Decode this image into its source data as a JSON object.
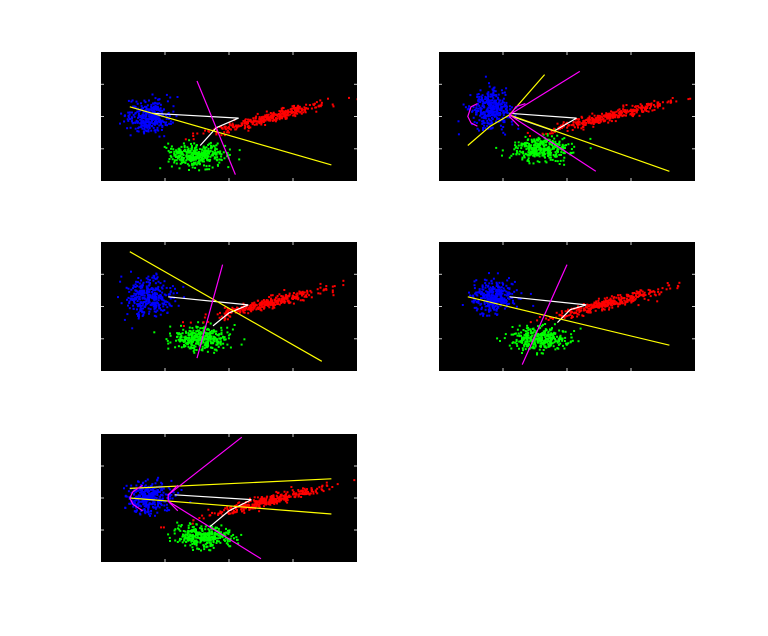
{
  "figure": {
    "background": "#ffffff",
    "axes_background": "#000000",
    "tick_color": "#cccccc"
  },
  "chart_data": [
    {
      "type": "scatter",
      "xlim": [
        0,
        8
      ],
      "ylim": [
        -1,
        3
      ],
      "grid": false,
      "clusters": [
        {
          "color": "#0000ff",
          "n": 340,
          "center": [
            1.5,
            1.0
          ],
          "sx": 0.33,
          "sy": 0.25,
          "rot": 0.0
        },
        {
          "color": "#00ff00",
          "n": 340,
          "center": [
            3.0,
            -0.2
          ],
          "sx": 0.45,
          "sy": 0.18,
          "rot": 0.0
        },
        {
          "color": "#ff0000",
          "n": 340,
          "center": [
            5.2,
            0.95
          ],
          "sx": 0.95,
          "sy": 0.08,
          "rot": 0.24
        }
      ],
      "curves": [
        {
          "color": "#ffffff",
          "points": [
            [
              3.1,
              0.1
            ],
            [
              3.6,
              0.65
            ],
            [
              4.3,
              0.95
            ]
          ]
        },
        {
          "color": "#ffffff",
          "points": [
            [
              1.6,
              1.1
            ],
            [
              4.3,
              0.95
            ]
          ]
        },
        {
          "color": "#ffff00",
          "points": [
            [
              0.9,
              1.3
            ],
            [
              7.2,
              -0.5
            ]
          ]
        },
        {
          "color": "#ff00ff",
          "points": [
            [
              3.0,
              2.1
            ],
            [
              4.2,
              -0.8
            ]
          ]
        }
      ]
    },
    {
      "type": "scatter",
      "xlim": [
        0,
        8
      ],
      "ylim": [
        -1,
        3
      ],
      "grid": false,
      "clusters": [
        {
          "color": "#0000ff",
          "n": 340,
          "center": [
            1.6,
            1.2
          ],
          "sx": 0.3,
          "sy": 0.28,
          "rot": 0.0
        },
        {
          "color": "#00ff00",
          "n": 340,
          "center": [
            3.2,
            0.0
          ],
          "sx": 0.45,
          "sy": 0.18,
          "rot": 0.0
        },
        {
          "color": "#ff0000",
          "n": 340,
          "center": [
            5.3,
            1.0
          ],
          "sx": 0.95,
          "sy": 0.08,
          "rot": 0.24
        }
      ],
      "curves": [
        {
          "color": "#ffffff",
          "points": [
            [
              2.3,
              1.0
            ],
            [
              3.6,
              0.55
            ],
            [
              4.3,
              0.95
            ]
          ]
        },
        {
          "color": "#ffffff",
          "points": [
            [
              2.2,
              1.1
            ],
            [
              4.3,
              0.95
            ]
          ]
        },
        {
          "color": "#ffff00",
          "points": [
            [
              2.2,
              1.05
            ],
            [
              7.2,
              -0.7
            ]
          ]
        },
        {
          "color": "#ffff00",
          "points": [
            [
              0.9,
              0.1
            ],
            [
              1.6,
              0.7
            ],
            [
              2.2,
              1.05
            ],
            [
              3.3,
              2.3
            ]
          ]
        },
        {
          "color": "#ff00ff",
          "points": [
            [
              2.2,
              1.05
            ],
            [
              4.4,
              2.4
            ]
          ]
        },
        {
          "color": "#ff00ff",
          "points": [
            [
              2.2,
              1.05
            ],
            [
              4.9,
              -0.7
            ]
          ]
        },
        {
          "color": "#ff00ff",
          "points": [
            [
              1.2,
              0.7
            ],
            [
              1.0,
              0.8
            ],
            [
              0.9,
              1.0
            ],
            [
              1.0,
              1.3
            ],
            [
              1.2,
              1.4
            ]
          ]
        },
        {
          "color": "#ff00ff",
          "points": [
            [
              2.5,
              0.7
            ],
            [
              2.2,
              1.0
            ],
            [
              2.4,
              1.3
            ],
            [
              2.7,
              1.4
            ]
          ]
        }
      ]
    },
    {
      "type": "scatter",
      "xlim": [
        0,
        8
      ],
      "ylim": [
        -1,
        3
      ],
      "grid": false,
      "clusters": [
        {
          "color": "#0000ff",
          "n": 340,
          "center": [
            1.5,
            1.3
          ],
          "sx": 0.35,
          "sy": 0.28,
          "rot": 0.0
        },
        {
          "color": "#00ff00",
          "n": 340,
          "center": [
            3.1,
            0.0
          ],
          "sx": 0.45,
          "sy": 0.18,
          "rot": 0.0
        },
        {
          "color": "#ff0000",
          "n": 340,
          "center": [
            5.2,
            1.1
          ],
          "sx": 0.95,
          "sy": 0.08,
          "rot": 0.24
        }
      ],
      "curves": [
        {
          "color": "#ffffff",
          "points": [
            [
              3.5,
              0.4
            ],
            [
              4.0,
              0.8
            ],
            [
              4.6,
              1.05
            ]
          ]
        },
        {
          "color": "#ffffff",
          "points": [
            [
              2.1,
              1.3
            ],
            [
              4.6,
              1.05
            ]
          ]
        },
        {
          "color": "#ffff00",
          "points": [
            [
              0.9,
              2.7
            ],
            [
              6.9,
              -0.7
            ]
          ]
        },
        {
          "color": "#ff00ff",
          "points": [
            [
              3.8,
              2.3
            ],
            [
              3.0,
              -0.6
            ]
          ]
        }
      ]
    },
    {
      "type": "scatter",
      "xlim": [
        0,
        8
      ],
      "ylim": [
        -1,
        3
      ],
      "grid": false,
      "clusters": [
        {
          "color": "#0000ff",
          "n": 340,
          "center": [
            1.7,
            1.3
          ],
          "sx": 0.35,
          "sy": 0.25,
          "rot": 0.0
        },
        {
          "color": "#00ff00",
          "n": 340,
          "center": [
            3.1,
            0.0
          ],
          "sx": 0.45,
          "sy": 0.18,
          "rot": 0.0
        },
        {
          "color": "#ff0000",
          "n": 340,
          "center": [
            5.3,
            1.1
          ],
          "sx": 0.95,
          "sy": 0.08,
          "rot": 0.24
        }
      ],
      "curves": [
        {
          "color": "#ffffff",
          "points": [
            [
              3.7,
              0.5
            ],
            [
              4.1,
              0.9
            ],
            [
              4.6,
              1.05
            ]
          ]
        },
        {
          "color": "#ffffff",
          "points": [
            [
              2.2,
              1.3
            ],
            [
              4.6,
              1.05
            ]
          ]
        },
        {
          "color": "#ffff00",
          "points": [
            [
              0.9,
              1.3
            ],
            [
              7.2,
              -0.2
            ]
          ]
        },
        {
          "color": "#ff00ff",
          "points": [
            [
              4.0,
              2.3
            ],
            [
              2.6,
              -0.8
            ]
          ]
        }
      ]
    },
    {
      "type": "scatter",
      "xlim": [
        0,
        8
      ],
      "ylim": [
        -1,
        3
      ],
      "grid": false,
      "clusters": [
        {
          "color": "#0000ff",
          "n": 340,
          "center": [
            1.5,
            1.0
          ],
          "sx": 0.33,
          "sy": 0.25,
          "rot": 0.0
        },
        {
          "color": "#00ff00",
          "n": 340,
          "center": [
            3.2,
            -0.2
          ],
          "sx": 0.45,
          "sy": 0.18,
          "rot": 0.0
        },
        {
          "color": "#ff0000",
          "n": 340,
          "center": [
            5.2,
            0.9
          ],
          "sx": 0.95,
          "sy": 0.08,
          "rot": 0.24
        }
      ],
      "curves": [
        {
          "color": "#ffffff",
          "points": [
            [
              3.4,
              0.1
            ],
            [
              4.0,
              0.6
            ],
            [
              4.7,
              0.95
            ]
          ]
        },
        {
          "color": "#ffffff",
          "points": [
            [
              2.3,
              1.1
            ],
            [
              4.7,
              0.95
            ]
          ]
        },
        {
          "color": "#ffff00",
          "points": [
            [
              0.9,
              1.3
            ],
            [
              7.2,
              1.6
            ]
          ]
        },
        {
          "color": "#ffff00",
          "points": [
            [
              0.9,
              1.0
            ],
            [
              7.2,
              0.5
            ]
          ]
        },
        {
          "color": "#ff00ff",
          "points": [
            [
              2.1,
              1.1
            ],
            [
              4.4,
              2.9
            ]
          ]
        },
        {
          "color": "#ff00ff",
          "points": [
            [
              2.1,
              0.9
            ],
            [
              5.0,
              -0.9
            ]
          ]
        },
        {
          "color": "#ff00ff",
          "points": [
            [
              1.3,
              0.6
            ],
            [
              1.0,
              0.8
            ],
            [
              0.9,
              1.0
            ],
            [
              1.0,
              1.2
            ],
            [
              1.3,
              1.4
            ]
          ]
        },
        {
          "color": "#ff00ff",
          "points": [
            [
              2.4,
              0.6
            ],
            [
              2.1,
              0.9
            ],
            [
              2.1,
              1.1
            ],
            [
              2.4,
              1.4
            ]
          ]
        }
      ]
    }
  ]
}
